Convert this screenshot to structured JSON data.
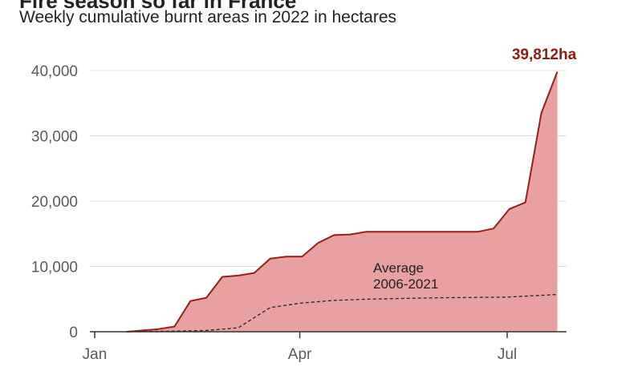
{
  "header": {
    "title": "Fire season so far in France",
    "subtitle": "Weekly cumulative burnt areas in 2022 in hectares"
  },
  "colors": {
    "area_fill": "#e8a0a0",
    "line": "#9b1d14",
    "average_line": "#222222",
    "grid": "#dddddd",
    "axis": "#333333"
  },
  "chart_data": {
    "type": "area",
    "ylim": [
      0,
      40000
    ],
    "y_ticks": [
      0,
      10000,
      20000,
      30000,
      40000
    ],
    "y_tick_labels": [
      "0",
      "10,000",
      "20,000",
      "30,000",
      "40,000"
    ],
    "x_ticks": [
      "2022-01-01",
      "2022-04-01",
      "2022-07-01"
    ],
    "x_tick_labels": [
      "Jan",
      "Apr",
      "Jul"
    ],
    "x_range": [
      "2022-01-01",
      "2022-07-31"
    ],
    "grid": true,
    "series": [
      {
        "x": [
          "2022-01-15",
          "2022-01-29",
          "2022-02-05",
          "2022-02-12",
          "2022-02-19",
          "2022-02-26",
          "2022-03-05",
          "2022-03-12",
          "2022-03-19",
          "2022-03-26",
          "2022-04-02",
          "2022-04-09",
          "2022-04-16",
          "2022-04-23",
          "2022-04-30",
          "2022-05-07",
          "2022-05-14",
          "2022-05-21",
          "2022-05-28",
          "2022-06-04",
          "2022-06-11",
          "2022-06-18",
          "2022-06-25",
          "2022-07-02",
          "2022-07-09",
          "2022-07-16",
          "2022-07-23"
        ],
        "y": [
          0,
          400,
          800,
          4700,
          5200,
          8400,
          8600,
          9000,
          11200,
          11500,
          11500,
          13600,
          14800,
          14900,
          15300,
          15300,
          15300,
          15300,
          15300,
          15300,
          15300,
          15300,
          15800,
          18800,
          19800,
          33500,
          39812
        ]
      },
      {
        "name": "Average 2006-2021",
        "style": "dashed",
        "x": [
          "2022-01-15",
          "2022-02-05",
          "2022-02-19",
          "2022-03-05",
          "2022-03-19",
          "2022-04-02",
          "2022-04-16",
          "2022-05-01",
          "2022-06-01",
          "2022-07-01",
          "2022-07-23"
        ],
        "y": [
          0,
          100,
          200,
          600,
          3700,
          4400,
          4800,
          5000,
          5200,
          5300,
          5700
        ]
      }
    ],
    "annotations": [
      {
        "text": "39,812ha",
        "x": "2022-07-23",
        "y": 39812
      },
      {
        "text": "Average\n2006-2021",
        "x": "2022-05-20",
        "y": 8000
      }
    ]
  }
}
